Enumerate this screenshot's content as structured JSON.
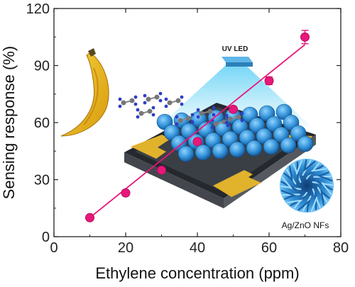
{
  "chart_data": {
    "type": "scatter",
    "title": "",
    "xlabel": "Ethylene concentration (ppm)",
    "ylabel": "Sensing response (%)",
    "xlim": [
      0,
      80
    ],
    "ylim": [
      0,
      120
    ],
    "xticks": [
      0,
      20,
      40,
      60,
      80
    ],
    "yticks": [
      0,
      30,
      60,
      90,
      120
    ],
    "grid": false,
    "series": [
      {
        "x": [
          10,
          20,
          30,
          40,
          50,
          60,
          70
        ],
        "y": [
          10,
          23,
          35,
          50,
          67,
          82,
          105
        ],
        "error": [
          1.2,
          1.2,
          1.2,
          1.5,
          1.5,
          2,
          3.5
        ],
        "marker": "circle",
        "color": "#e8177a"
      }
    ],
    "fit_line": {
      "x": [
        10,
        70
      ],
      "y": [
        10,
        101
      ],
      "color": "#e8177a"
    }
  },
  "illustration": {
    "led_label": "UV LED",
    "nanoflower_label": "Ag/ZnO NFs",
    "colors": {
      "banana": "#f0c419",
      "zno": "#2f8fd6",
      "electrode": "#e1b22c",
      "chip": "#2b2e33",
      "uv_light": "#5fd0f5"
    }
  }
}
